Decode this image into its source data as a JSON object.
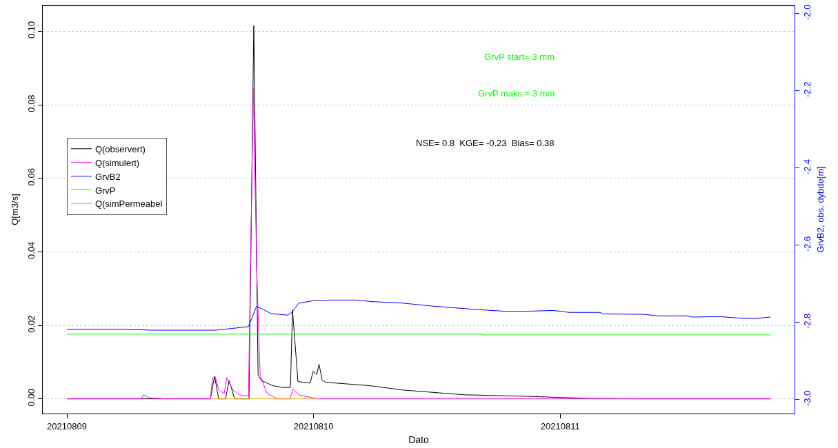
{
  "chart_data": {
    "type": "line",
    "xlabel": "Dato",
    "ylabel": "Q[m3/s]",
    "y2label": "GrvB2, obs. dybde[m]",
    "annotations": [
      "GrvP start= 3 mm",
      "GrvP maks.= 3 mm",
      "NSE= 0.8  KGE= -0.23  Bias= 0.38"
    ],
    "xlim": [
      "2021-08-08T21:39",
      "2021-08-11T22:48"
    ],
    "xticks": [
      {
        "value": "2021-08-09",
        "label": "20210809"
      },
      {
        "value": "2021-08-10",
        "label": "20210810"
      },
      {
        "value": "2021-08-11",
        "label": "20210811"
      }
    ],
    "ylim": [
      -0.004,
      0.107
    ],
    "yticks": [
      {
        "value": 0,
        "label": "0.00"
      },
      {
        "value": 0.02,
        "label": "0.02"
      },
      {
        "value": 0.04,
        "label": "0.04"
      },
      {
        "value": 0.06,
        "label": "0.06"
      },
      {
        "value": 0.08,
        "label": "0.08"
      },
      {
        "value": 0.1,
        "label": "0.10"
      }
    ],
    "y2lim": [
      -3.036,
      -1.979
    ],
    "y2ticks": [
      {
        "value": -3,
        "label": "-3.0"
      },
      {
        "value": -2.8,
        "label": "-2.8"
      },
      {
        "value": -2.6,
        "label": "-2.6"
      },
      {
        "value": -2.4,
        "label": "-2.4"
      },
      {
        "value": -2.2,
        "label": "-2.2"
      },
      {
        "value": -2,
        "label": "-2.0"
      }
    ],
    "grid": "y",
    "legend": "left",
    "line_style": "solid",
    "series": [
      {
        "name": "Q(observert)",
        "color": "#000000",
        "x": [
          "2021-08-09T00:00",
          "2021-08-09T13:58",
          "2021-08-09T14:22",
          "2021-08-09T14:46",
          "2021-08-09T15:26",
          "2021-08-09T15:47",
          "2021-08-09T16:19",
          "2021-08-09T17:43",
          "2021-08-09T18:11",
          "2021-08-09T18:36",
          "2021-08-09T18:56",
          "2021-08-09T20:00",
          "2021-08-09T20:59",
          "2021-08-09T21:45",
          "2021-08-09T21:57",
          "2021-08-09T22:29",
          "2021-08-09T23:40",
          "2021-08-09T23:58",
          "2021-08-10T00:18",
          "2021-08-10T00:32",
          "2021-08-10T00:50",
          "2021-08-10T01:10",
          "2021-08-10T05:24",
          "2021-08-10T08:41",
          "2021-08-10T14:40",
          "2021-08-10T20:40",
          "2021-08-11T02:41",
          "2021-08-11T08:03",
          "2021-08-11T20:28"
        ],
        "values": [
          0,
          0,
          0.0062,
          0,
          0,
          0.005,
          0,
          0,
          0.1015,
          0.0064,
          0.005,
          0.0036,
          0.0031,
          0.0031,
          0.0241,
          0.0047,
          0.0043,
          0.0075,
          0.0066,
          0.0094,
          0.0051,
          0.0045,
          0.0036,
          0.0024,
          0.0011,
          0.0007,
          0.0001,
          0,
          0
        ]
      },
      {
        "name": "Q(simulert)",
        "color": "#ff00ff",
        "x": [
          "2021-08-09T00:00",
          "2021-08-09T07:15",
          "2021-08-09T07:27",
          "2021-08-09T08:03",
          "2021-08-09T09:48",
          "2021-08-09T13:58",
          "2021-08-09T14:10",
          "2021-08-09T14:26",
          "2021-08-09T14:46",
          "2021-08-09T15:18",
          "2021-08-09T15:34",
          "2021-08-09T16:07",
          "2021-08-09T16:47",
          "2021-08-09T17:40",
          "2021-08-09T18:08",
          "2021-08-09T18:28",
          "2021-08-09T18:48",
          "2021-08-09T19:28",
          "2021-08-09T20:28",
          "2021-08-09T21:41",
          "2021-08-09T22:01",
          "2021-08-09T22:33",
          "2021-08-10T00:22",
          "2021-08-11T20:28"
        ],
        "values": [
          0,
          0,
          0.0011,
          0.0002,
          0,
          0,
          0.0056,
          0.006,
          0.0025,
          0.0014,
          0.0058,
          0.0025,
          0.0011,
          0.0008,
          0.0845,
          0.0356,
          0.0064,
          0.0015,
          0,
          0,
          0.0027,
          0.0011,
          0,
          0
        ]
      },
      {
        "name": "GrvB2",
        "color": "#0000ff",
        "axis": "y2",
        "x": [
          "2021-08-09T00:00",
          "2021-08-09T05:34",
          "2021-08-09T08:15",
          "2021-08-09T14:30",
          "2021-08-09T17:40",
          "2021-08-09T18:26",
          "2021-08-09T19:00",
          "2021-08-09T19:52",
          "2021-08-09T21:29",
          "2021-08-09T21:53",
          "2021-08-09T22:33",
          "2021-08-10T00:10",
          "2021-08-10T01:43",
          "2021-08-10T04:11",
          "2021-08-10T05:40",
          "2021-08-10T08:41",
          "2021-08-10T11:41",
          "2021-08-10T15:35",
          "2021-08-10T18:34",
          "2021-08-10T20:40",
          "2021-08-10T23:22",
          "2021-08-11T00:52",
          "2021-08-11T03:52",
          "2021-08-11T04:10",
          "2021-08-11T08:03",
          "2021-08-11T09:34",
          "2021-08-11T12:16",
          "2021-08-11T12:52",
          "2021-08-11T15:34",
          "2021-08-11T17:58",
          "2021-08-11T18:52",
          "2021-08-11T20:28"
        ],
        "values": [
          -2.818,
          -2.818,
          -2.82,
          -2.82,
          -2.811,
          -2.759,
          -2.765,
          -2.777,
          -2.781,
          -2.774,
          -2.75,
          -2.743,
          -2.742,
          -2.742,
          -2.746,
          -2.75,
          -2.758,
          -2.766,
          -2.771,
          -2.771,
          -2.769,
          -2.774,
          -2.774,
          -2.778,
          -2.779,
          -2.783,
          -2.783,
          -2.786,
          -2.785,
          -2.79,
          -2.79,
          -2.786
        ]
      },
      {
        "name": "GrvP",
        "color": "#00ff00",
        "x": [
          "2021-08-09T00:00",
          "2021-08-10T16:21",
          "2021-08-10T16:21",
          "2021-08-11T20:28"
        ],
        "values": [
          0.0176,
          0.0176,
          0.0174,
          0.0174
        ]
      },
      {
        "name": "Q(simPermeabel",
        "color": "#ffa500",
        "x": [
          "2021-08-09T13:58",
          "2021-08-10T00:22"
        ],
        "values": [
          0,
          0
        ]
      }
    ]
  }
}
